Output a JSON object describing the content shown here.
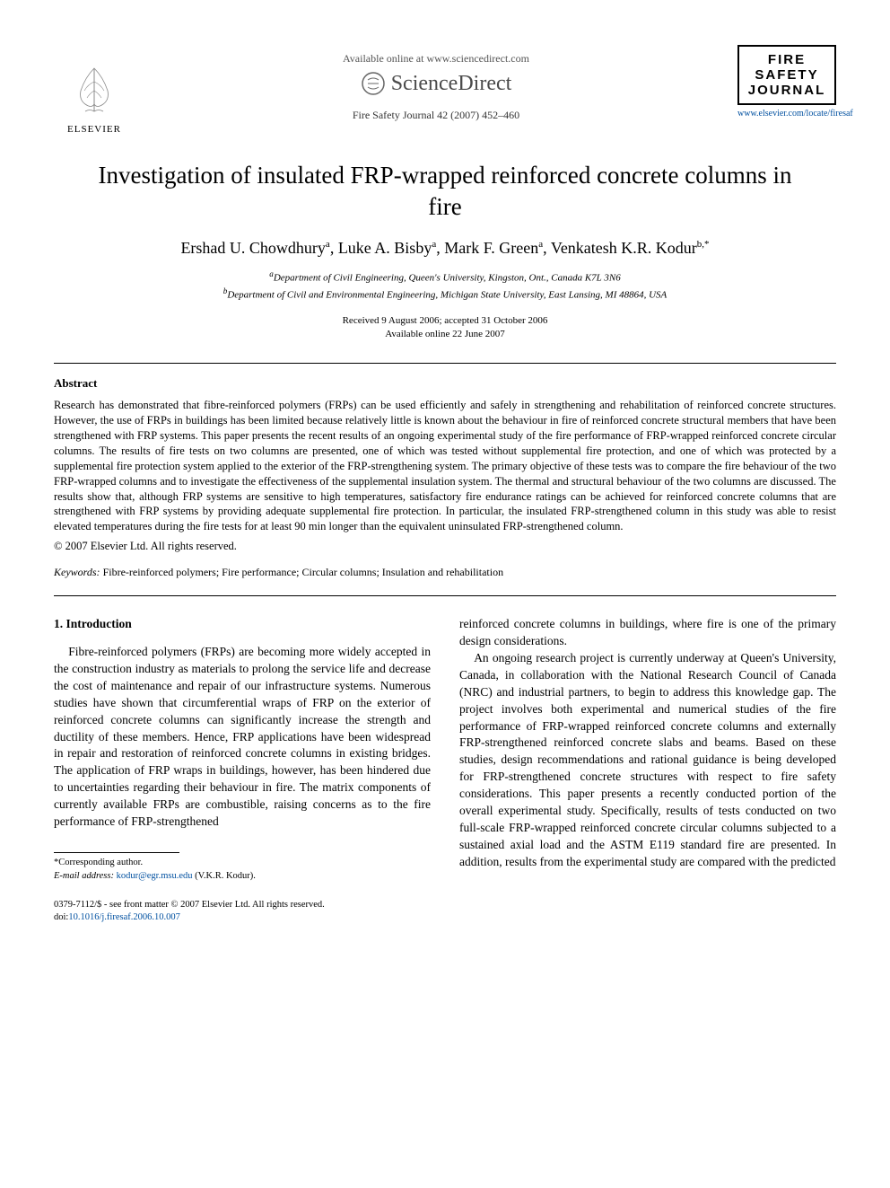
{
  "header": {
    "available_online": "Available online at www.sciencedirect.com",
    "sciencedirect": "ScienceDirect",
    "elsevier_label": "ELSEVIER",
    "journal_ref": "Fire Safety Journal 42 (2007) 452–460",
    "journal_logo_lines": [
      "FIRE",
      "SAFETY",
      "JOURNAL"
    ],
    "journal_url": "www.elsevier.com/locate/firesaf"
  },
  "title": "Investigation of insulated FRP-wrapped reinforced concrete columns in fire",
  "authors_html": "Ershad U. Chowdhury<sup>a</sup>, Luke A. Bisby<sup>a</sup>, Mark F. Green<sup>a</sup>, Venkatesh K.R. Kodur<sup>b,*</sup>",
  "affiliations": {
    "a": "Department of Civil Engineering, Queen's University, Kingston, Ont., Canada K7L 3N6",
    "b": "Department of Civil and Environmental Engineering, Michigan State University, East Lansing, MI 48864, USA"
  },
  "dates": {
    "received": "Received 9 August 2006; accepted 31 October 2006",
    "online": "Available online 22 June 2007"
  },
  "abstract": {
    "heading": "Abstract",
    "text": "Research has demonstrated that fibre-reinforced polymers (FRPs) can be used efficiently and safely in strengthening and rehabilitation of reinforced concrete structures. However, the use of FRPs in buildings has been limited because relatively little is known about the behaviour in fire of reinforced concrete structural members that have been strengthened with FRP systems. This paper presents the recent results of an ongoing experimental study of the fire performance of FRP-wrapped reinforced concrete circular columns. The results of fire tests on two columns are presented, one of which was tested without supplemental fire protection, and one of which was protected by a supplemental fire protection system applied to the exterior of the FRP-strengthening system. The primary objective of these tests was to compare the fire behaviour of the two FRP-wrapped columns and to investigate the effectiveness of the supplemental insulation system. The thermal and structural behaviour of the two columns are discussed. The results show that, although FRP systems are sensitive to high temperatures, satisfactory fire endurance ratings can be achieved for reinforced concrete columns that are strengthened with FRP systems by providing adequate supplemental fire protection. In particular, the insulated FRP-strengthened column in this study was able to resist elevated temperatures during the fire tests for at least 90 min longer than the equivalent uninsulated FRP-strengthened column.",
    "copyright": "© 2007 Elsevier Ltd. All rights reserved."
  },
  "keywords": {
    "label": "Keywords:",
    "text": "Fibre-reinforced polymers; Fire performance; Circular columns; Insulation and rehabilitation"
  },
  "body": {
    "section1_heading": "1. Introduction",
    "col1_p1": "Fibre-reinforced polymers (FRPs) are becoming more widely accepted in the construction industry as materials to prolong the service life and decrease the cost of maintenance and repair of our infrastructure systems. Numerous studies have shown that circumferential wraps of FRP on the exterior of reinforced concrete columns can significantly increase the strength and ductility of these members. Hence, FRP applications have been widespread in repair and restoration of reinforced concrete columns in existing bridges. The application of FRP wraps in buildings, however, has been hindered due to uncertainties regarding their behaviour in fire. The matrix components of currently available FRPs are combustible, raising concerns as to the fire performance of FRP-strengthened",
    "col2_p1": "reinforced concrete columns in buildings, where fire is one of the primary design considerations.",
    "col2_p2": "An ongoing research project is currently underway at Queen's University, Canada, in collaboration with the National Research Council of Canada (NRC) and industrial partners, to begin to address this knowledge gap. The project involves both experimental and numerical studies of the fire performance of FRP-wrapped reinforced concrete columns and externally FRP-strengthened reinforced concrete slabs and beams. Based on these studies, design recommendations and rational guidance is being developed for FRP-strengthened concrete structures with respect to fire safety considerations. This paper presents a recently conducted portion of the overall experimental study. Specifically, results of tests conducted on two full-scale FRP-wrapped reinforced concrete circular columns subjected to a sustained axial load and the ASTM E119 standard fire are presented. In addition, results from the experimental study are compared with the predicted"
  },
  "footnote": {
    "corresponding": "*Corresponding author.",
    "email_label": "E-mail address:",
    "email": "kodur@egr.msu.edu",
    "email_name": "(V.K.R. Kodur)."
  },
  "footer": {
    "line1": "0379-7112/$ - see front matter © 2007 Elsevier Ltd. All rights reserved.",
    "doi_label": "doi:",
    "doi": "10.1016/j.firesaf.2006.10.007"
  },
  "colors": {
    "link": "#0050a0",
    "text": "#000000",
    "gray": "#555555"
  }
}
